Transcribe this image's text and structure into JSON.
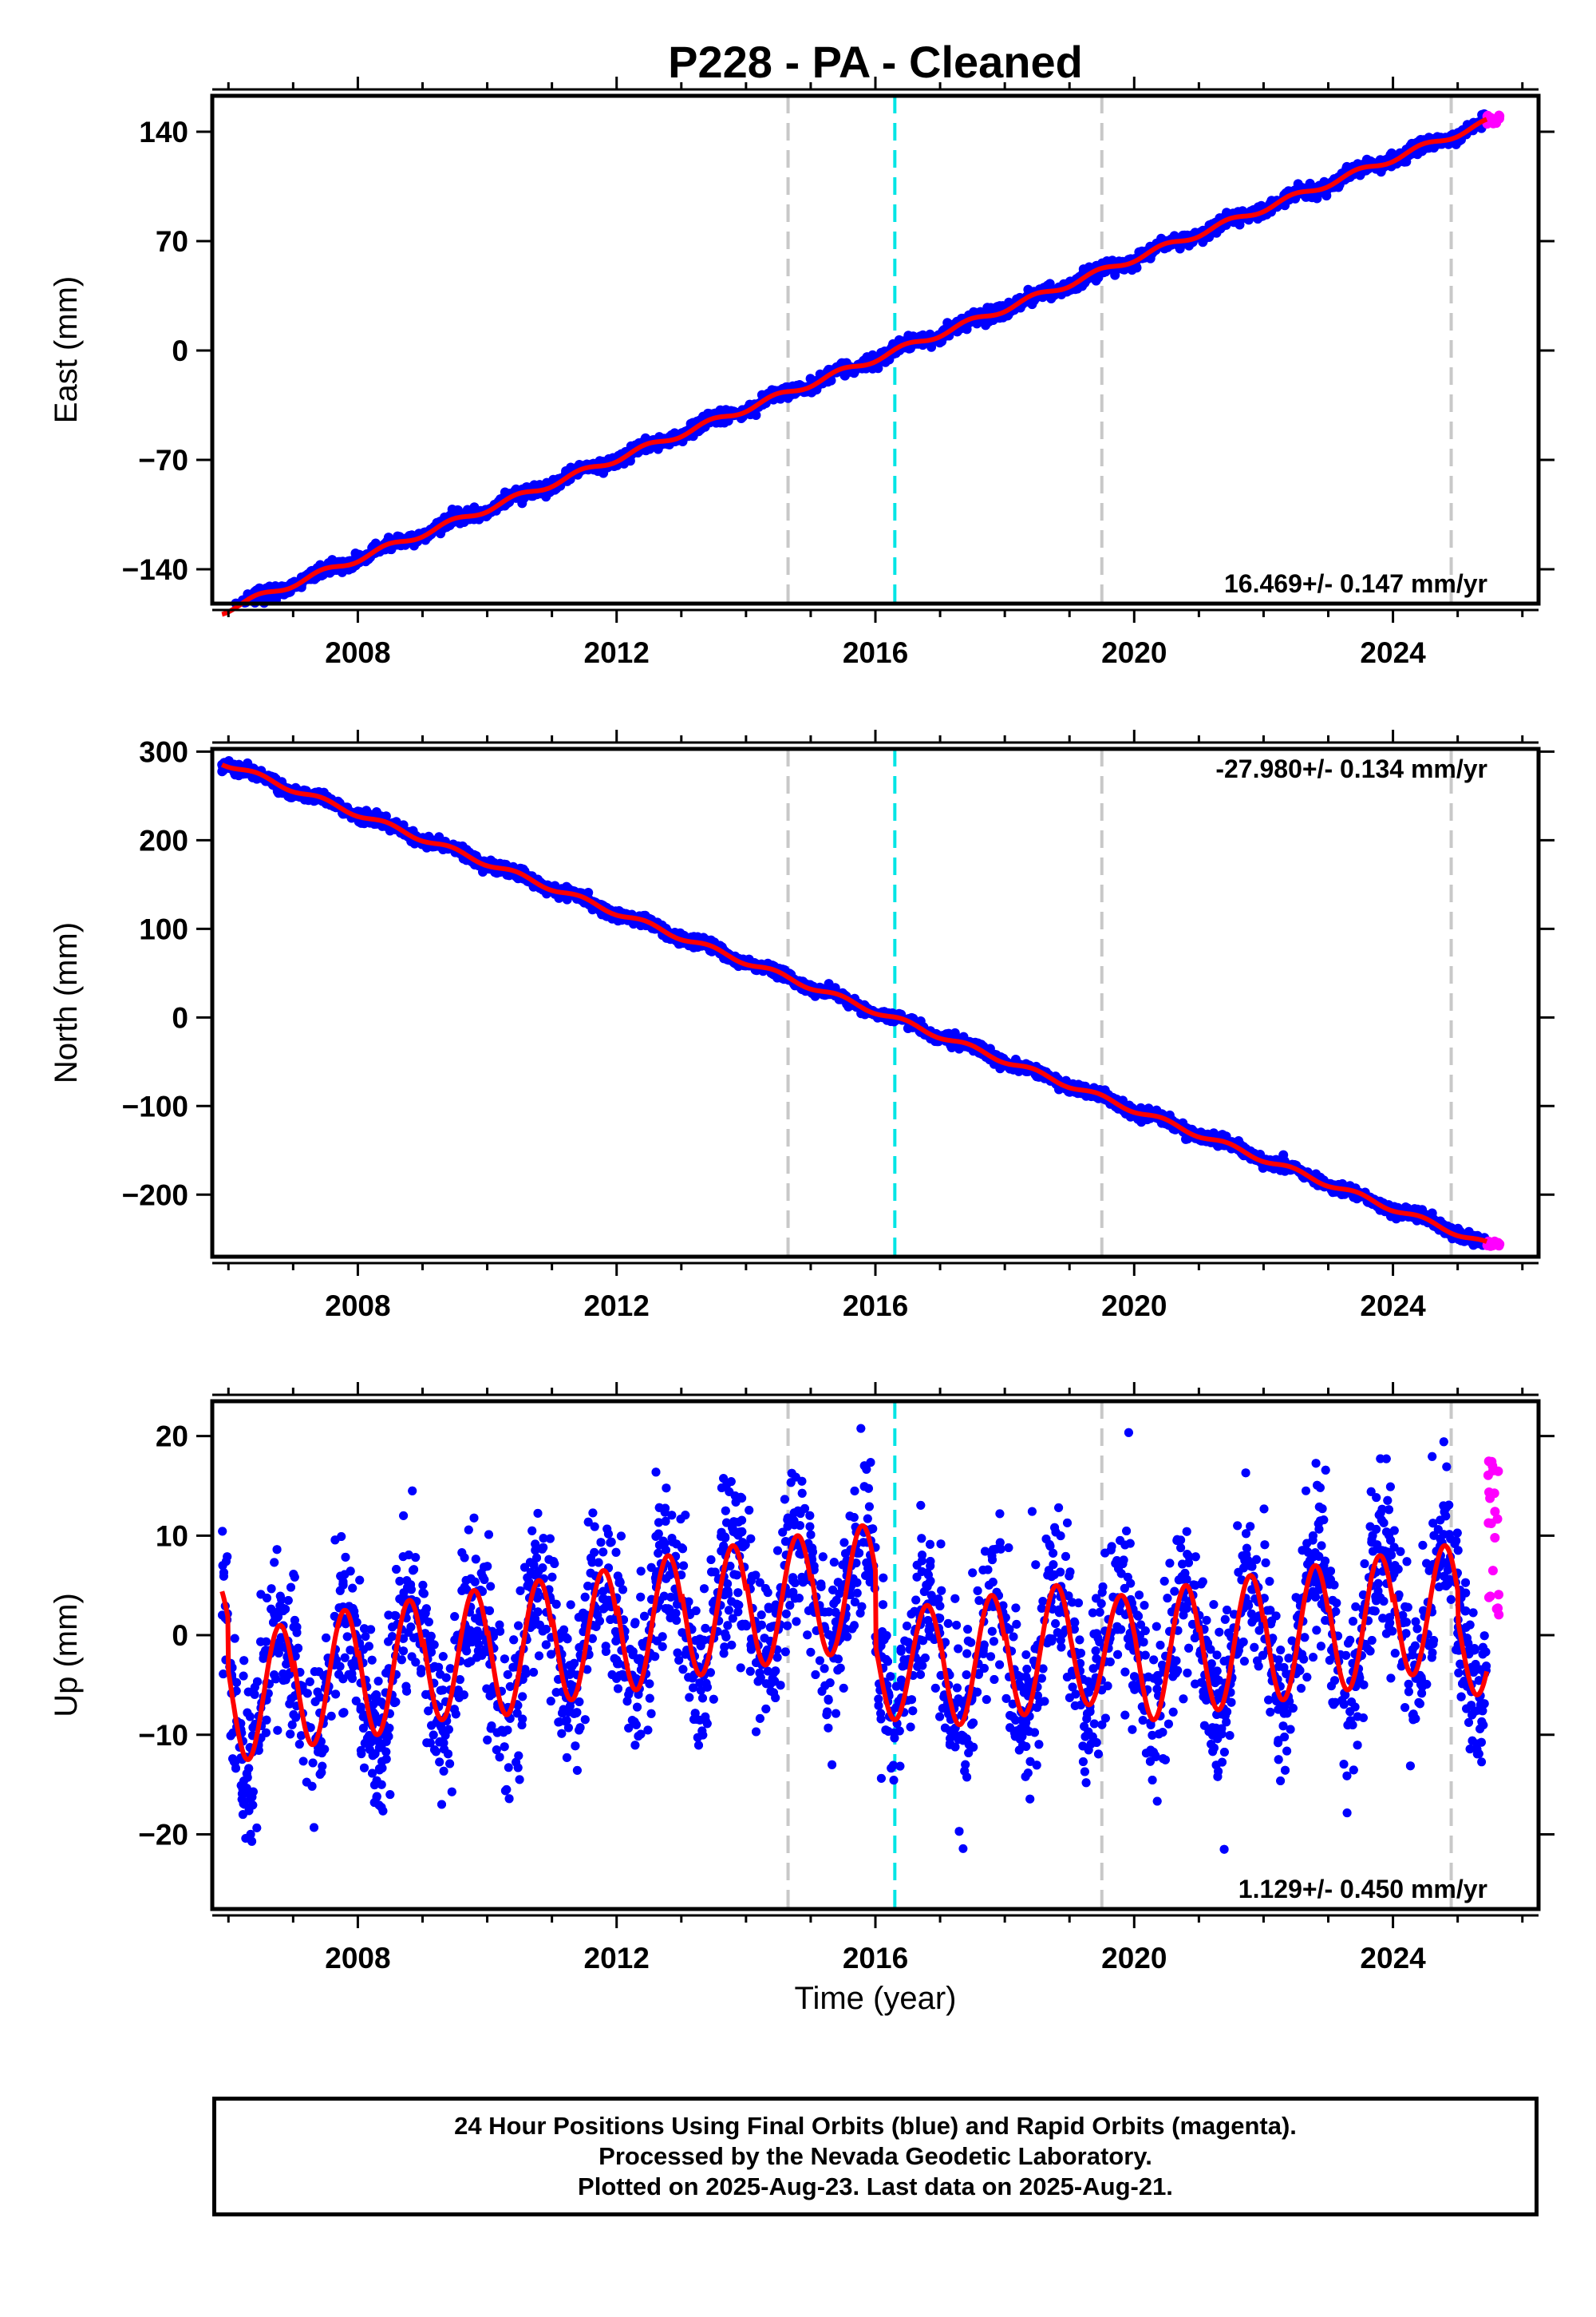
{
  "title": "P228  - PA - Cleaned",
  "colors": {
    "final_orbits": "#0000ff",
    "rapid_orbits": "#ff00ff",
    "model": "#ff0000",
    "grey_event": "#c8c8c8",
    "cyan_event": "#00e5e5"
  },
  "chart_data": [
    {
      "type": "scatter",
      "component": "East",
      "ylabel": "East (mm)",
      "xlabel": "",
      "xlim": [
        2005.75,
        2026.25
      ],
      "ylim": [
        -162,
        163
      ],
      "yticks": [
        -140,
        -70,
        0,
        70,
        140
      ],
      "xticks": [
        2008,
        2012,
        2016,
        2020,
        2024
      ],
      "rate_label": "16.469+/- 0.147 mm/yr",
      "rate_position": "bottom-right",
      "series": [
        {
          "style": "blue-dots",
          "x_range": [
            2005.9,
            2025.45
          ],
          "y_at_start": -167,
          "y_at_end": 145,
          "approx_scatter_mm": 2
        },
        {
          "style": "magenta-dots",
          "x_range": [
            2025.45,
            2025.65
          ],
          "y_range": [
            145,
            152
          ]
        },
        {
          "style": "red-line",
          "y_at_start": -167,
          "y_at_end": 146,
          "annual_amplitude_mm": 2
        }
      ],
      "event_lines": [
        {
          "x": 2014.65,
          "color": "grey"
        },
        {
          "x": 2016.3,
          "color": "cyan"
        },
        {
          "x": 2019.5,
          "color": "grey"
        },
        {
          "x": 2024.9,
          "color": "grey"
        }
      ]
    },
    {
      "type": "scatter",
      "component": "North",
      "ylabel": "North (mm)",
      "xlabel": "",
      "xlim": [
        2005.75,
        2026.25
      ],
      "ylim": [
        -270,
        303
      ],
      "yticks": [
        -200,
        -100,
        0,
        100,
        200,
        300
      ],
      "xticks": [
        2008,
        2012,
        2016,
        2020,
        2024
      ],
      "rate_label": "-27.980+/- 0.134 mm/yr",
      "rate_position": "top-right",
      "series": [
        {
          "style": "blue-dots",
          "x_range": [
            2005.9,
            2025.45
          ],
          "y_at_start": 291,
          "y_at_end": -254,
          "approx_scatter_mm": 3
        },
        {
          "style": "magenta-dots",
          "x_range": [
            2025.45,
            2025.65
          ],
          "y_range": [
            -258,
            -252
          ]
        },
        {
          "style": "red-line",
          "y_at_start": 288,
          "y_at_end": -256,
          "annual_amplitude_mm": 3
        }
      ],
      "event_lines": [
        {
          "x": 2014.65,
          "color": "grey"
        },
        {
          "x": 2016.3,
          "color": "cyan"
        },
        {
          "x": 2019.5,
          "color": "grey"
        },
        {
          "x": 2024.9,
          "color": "grey"
        }
      ]
    },
    {
      "type": "scatter",
      "component": "Up",
      "ylabel": "Up (mm)",
      "xlabel": "Time (year)",
      "xlim": [
        2005.75,
        2026.25
      ],
      "ylim": [
        -27.5,
        23.5
      ],
      "yticks": [
        -20,
        -10,
        0,
        10,
        20
      ],
      "xticks": [
        2008,
        2012,
        2016,
        2020,
        2024
      ],
      "rate_label": "1.129+/- 0.450 mm/yr",
      "rate_position": "bottom-right",
      "series": [
        {
          "style": "blue-dots",
          "x_range": [
            2005.9,
            2025.45
          ],
          "approx_scatter_mm": 4
        },
        {
          "style": "magenta-dots",
          "x_range": [
            2025.45,
            2025.65
          ],
          "y_range": [
            2,
            18
          ]
        },
        {
          "style": "red-line",
          "seasonal_peak_month": 10,
          "peaks": [
            {
              "year": 2006,
              "min": -12.5,
              "max": 1
            },
            {
              "year": 2007,
              "min": -11,
              "max": 2.5
            },
            {
              "year": 2008,
              "min": -10,
              "max": 3.5
            },
            {
              "year": 2009,
              "min": -8.5,
              "max": 4.5
            },
            {
              "year": 2010,
              "min": -8,
              "max": 5.5
            },
            {
              "year": 2011,
              "min": -6.5,
              "max": 6.5
            },
            {
              "year": 2012,
              "min": -5.5,
              "max": 8
            },
            {
              "year": 2013,
              "min": -4,
              "max": 9
            },
            {
              "year": 2014,
              "min": -3,
              "max": 10
            },
            {
              "year": 2015,
              "min": -2,
              "max": 11
            },
            {
              "year": 2016,
              "min": -8.5,
              "max": 3
            },
            {
              "year": 2017,
              "min": -9,
              "max": 4
            },
            {
              "year": 2018,
              "min": -8,
              "max": 5
            },
            {
              "year": 2019,
              "min": -7,
              "max": 4
            },
            {
              "year": 2020,
              "min": -8.5,
              "max": 5
            },
            {
              "year": 2021,
              "min": -7.5,
              "max": 6
            },
            {
              "year": 2022,
              "min": -6.5,
              "max": 7
            },
            {
              "year": 2023,
              "min": -5.5,
              "max": 8
            },
            {
              "year": 2024,
              "min": -4,
              "max": 9
            },
            {
              "year": 2025,
              "min": -6,
              "max": 5.5
            }
          ]
        }
      ],
      "event_lines": [
        {
          "x": 2014.65,
          "color": "grey"
        },
        {
          "x": 2016.3,
          "color": "cyan"
        },
        {
          "x": 2019.5,
          "color": "grey"
        },
        {
          "x": 2024.9,
          "color": "grey"
        }
      ]
    }
  ],
  "footer": {
    "line1": "24 Hour Positions Using Final Orbits (blue) and Rapid Orbits (magenta).",
    "line2": "Processed by the Nevada Geodetic Laboratory.",
    "line3": "Plotted on 2025-Aug-23. Last data on 2025-Aug-21."
  }
}
